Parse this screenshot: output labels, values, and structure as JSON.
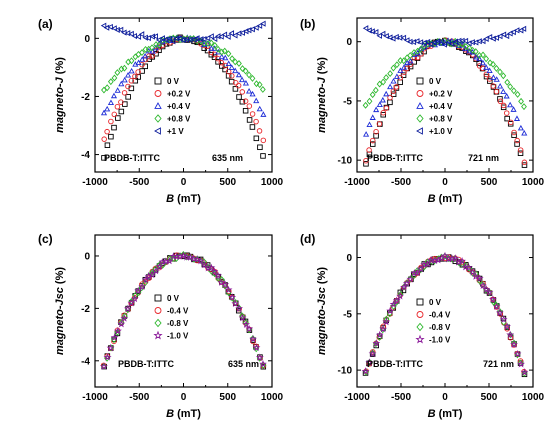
{
  "chart_data": [
    {
      "panel": "(a)",
      "type": "scatter",
      "xlabel": "B (mT)",
      "ylabel": "magneto-J (%)",
      "xlim": [
        -1000,
        1000
      ],
      "ylim": [
        -4.6,
        0.7
      ],
      "xticks": [
        -1000,
        -500,
        0,
        500,
        1000
      ],
      "yticks": [
        0,
        -2,
        -4
      ],
      "x_ticklabels": [
        "-1000",
        "-500",
        "0",
        "500",
        "1000"
      ],
      "y_ticklabels": [
        "0",
        "-2",
        "-4"
      ],
      "legend_position": "center-right",
      "annotations": [
        "PBDB-T:ITTC",
        "635 nm"
      ],
      "series": [
        {
          "name": "0 V",
          "marker": "square",
          "color": "#000000",
          "amp": -4.1,
          "offset": 0.0
        },
        {
          "name": "+0.2 V",
          "marker": "circle",
          "color": "#e8262b",
          "amp": -3.5,
          "offset": 0.0
        },
        {
          "name": "+0.4 V",
          "marker": "triangle-up",
          "color": "#1c2bd6",
          "amp": -2.6,
          "offset": 0.0
        },
        {
          "name": "+0.8 V",
          "marker": "diamond",
          "color": "#2fb82f",
          "amp": -1.8,
          "offset": 0.0
        },
        {
          "name": "+1 V",
          "marker": "triangle-left",
          "color": "#0a1a9a",
          "amp": 0.5,
          "offset": -0.05
        }
      ]
    },
    {
      "panel": "(b)",
      "type": "scatter",
      "xlabel": "B (mT)",
      "ylabel": "magneto-J (%)",
      "xlim": [
        -1000,
        1000
      ],
      "ylim": [
        -11,
        2
      ],
      "xticks": [
        -1000,
        -500,
        0,
        500,
        1000
      ],
      "yticks": [
        0,
        -5,
        -10
      ],
      "x_ticklabels": [
        "-1000",
        "-500",
        "0",
        "500",
        "1000"
      ],
      "y_ticklabels": [
        "0",
        "-5",
        "-10"
      ],
      "legend_position": "center-right",
      "annotations": [
        "PBDB-T:ITTC",
        "721 nm"
      ],
      "series": [
        {
          "name": "0 V",
          "marker": "square",
          "color": "#000000",
          "amp": -10.3,
          "offset": 0.0
        },
        {
          "name": "+0.2 V",
          "marker": "circle",
          "color": "#e8262b",
          "amp": -10.0,
          "offset": 0.0
        },
        {
          "name": "+0.4 V",
          "marker": "triangle-up",
          "color": "#1c2bd6",
          "amp": -7.8,
          "offset": 0.0
        },
        {
          "name": "+0.8 V",
          "marker": "diamond",
          "color": "#2fb82f",
          "amp": -5.4,
          "offset": 0.0
        },
        {
          "name": "+1.0 V",
          "marker": "triangle-left",
          "color": "#0a1a9a",
          "amp": 1.1,
          "offset": -0.1
        }
      ]
    },
    {
      "panel": "(c)",
      "type": "scatter",
      "xlabel": "B (mT)",
      "ylabel": "magneto-Jsc (%)",
      "xlim": [
        -1000,
        1000
      ],
      "ylim": [
        -5,
        0.8
      ],
      "xticks": [
        -1000,
        -500,
        0,
        500,
        1000
      ],
      "yticks": [
        0,
        -2,
        -4
      ],
      "x_ticklabels": [
        "-1000",
        "-500",
        "0",
        "500",
        "1000"
      ],
      "y_ticklabels": [
        "0",
        "-2",
        "-4"
      ],
      "legend_position": "center-right",
      "annotations": [
        "PBDB-T:ITTC",
        "635 nm"
      ],
      "series": [
        {
          "name": "0 V",
          "marker": "square",
          "color": "#000000",
          "amp": -4.2,
          "offset": 0.0
        },
        {
          "name": "-0.4 V",
          "marker": "circle",
          "color": "#e8262b",
          "amp": -4.2,
          "offset": 0.0
        },
        {
          "name": "-0.8 V",
          "marker": "diamond",
          "color": "#2fb82f",
          "amp": -4.2,
          "offset": 0.0
        },
        {
          "name": "-1.0 V",
          "marker": "star",
          "color": "#8b1a9a",
          "amp": -4.2,
          "offset": 0.0
        }
      ]
    },
    {
      "panel": "(d)",
      "type": "scatter",
      "xlabel": "B (mT)",
      "ylabel": "magneto-Jsc (%)",
      "xlim": [
        -1000,
        1000
      ],
      "ylim": [
        -11.5,
        2
      ],
      "xticks": [
        -1000,
        -500,
        0,
        500,
        1000
      ],
      "yticks": [
        0,
        -5,
        -10
      ],
      "x_ticklabels": [
        "-1000",
        "-500",
        "0",
        "500",
        "1000"
      ],
      "y_ticklabels": [
        "0",
        "-5",
        "-10"
      ],
      "legend_position": "center-right",
      "annotations": [
        "PBDB-T:ITTC",
        "721 nm"
      ],
      "series": [
        {
          "name": "0 V",
          "marker": "square",
          "color": "#000000",
          "amp": -10.2,
          "offset": 0.0
        },
        {
          "name": "-0.4 V",
          "marker": "circle",
          "color": "#e8262b",
          "amp": -10.2,
          "offset": 0.0
        },
        {
          "name": "-0.8 V",
          "marker": "diamond",
          "color": "#2fb82f",
          "amp": -10.2,
          "offset": 0.0
        },
        {
          "name": "-1.0 V",
          "marker": "star",
          "color": "#8b1a9a",
          "amp": -10.2,
          "offset": 0.0
        }
      ]
    }
  ]
}
